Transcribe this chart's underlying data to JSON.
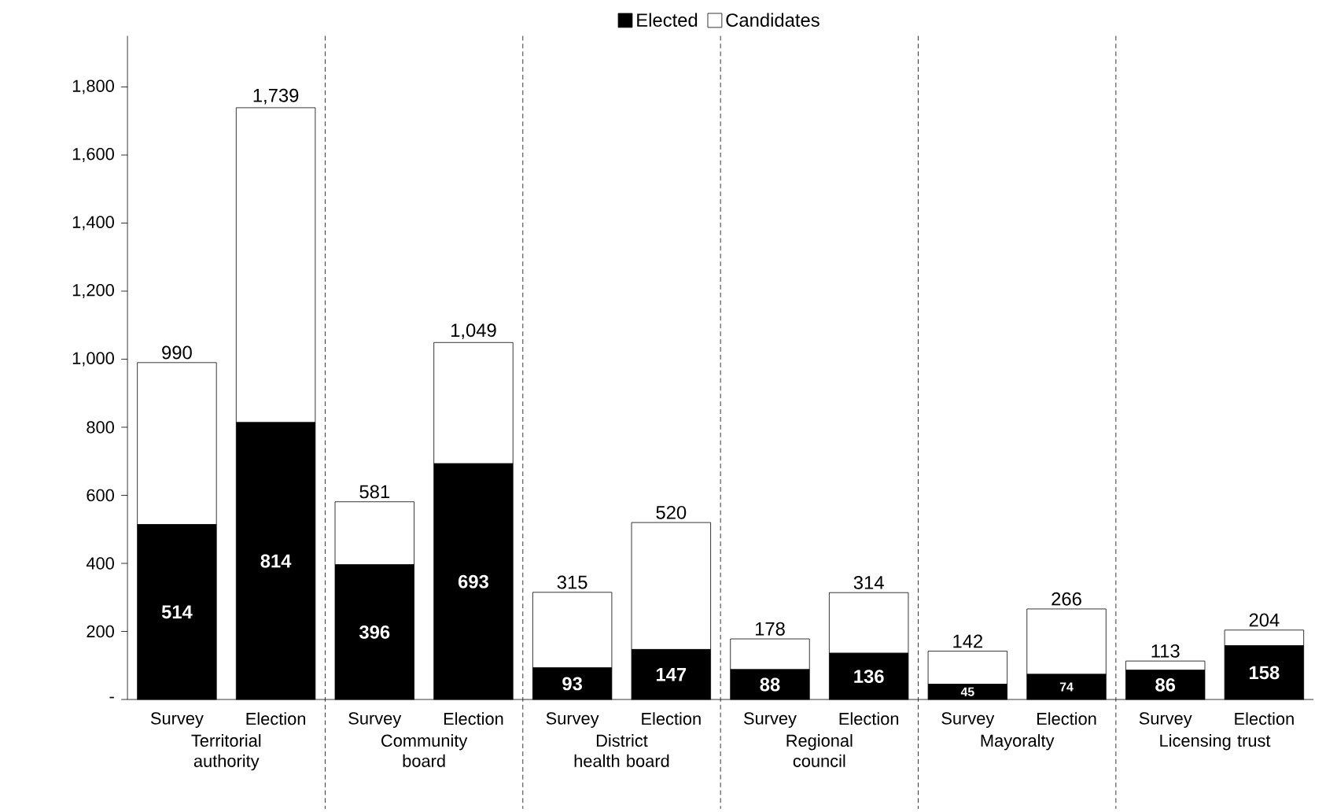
{
  "chart_data": {
    "type": "bar",
    "stacked": true,
    "legend": "top",
    "categories": [
      "Survey",
      "Election",
      "Survey",
      "Election",
      "Survey",
      "Election",
      "Survey",
      "Election",
      "Survey",
      "Election",
      "Survey",
      "Election"
    ],
    "series": [
      {
        "name": "Elected",
        "color": "#000000",
        "values": [
          514,
          814,
          396,
          693,
          93,
          147,
          88,
          136,
          45,
          74,
          86,
          158
        ],
        "value_labels": [
          "514",
          "814",
          "396",
          "693",
          "93",
          "147",
          "88",
          "136",
          "45",
          "74",
          "86",
          "158"
        ]
      },
      {
        "name": "Candidates",
        "color": "#ffffff",
        "values": [
          476,
          925,
          185,
          356,
          222,
          373,
          90,
          178,
          97,
          192,
          27,
          46
        ]
      }
    ],
    "totals": [
      "990",
      "1,739",
      "581",
      "1,049",
      "315",
      "520",
      "178",
      "314",
      "142",
      "266",
      "113",
      "204"
    ],
    "ylim": [
      0,
      1950
    ],
    "yticks": [
      {
        "value": 0,
        "label": "-"
      },
      200,
      400,
      600,
      800,
      {
        "value": 1000,
        "label": "1,000"
      },
      {
        "value": 1200,
        "label": "1,200"
      },
      {
        "value": 1400,
        "label": "1,400"
      },
      {
        "value": 1600,
        "label": "1,600"
      },
      {
        "value": 1800,
        "label": "1,800"
      }
    ],
    "annotations": [
      "Territorial authority",
      "Community board",
      "District health board",
      "Regional council",
      "Mayoralty",
      "Licensing trust"
    ]
  }
}
